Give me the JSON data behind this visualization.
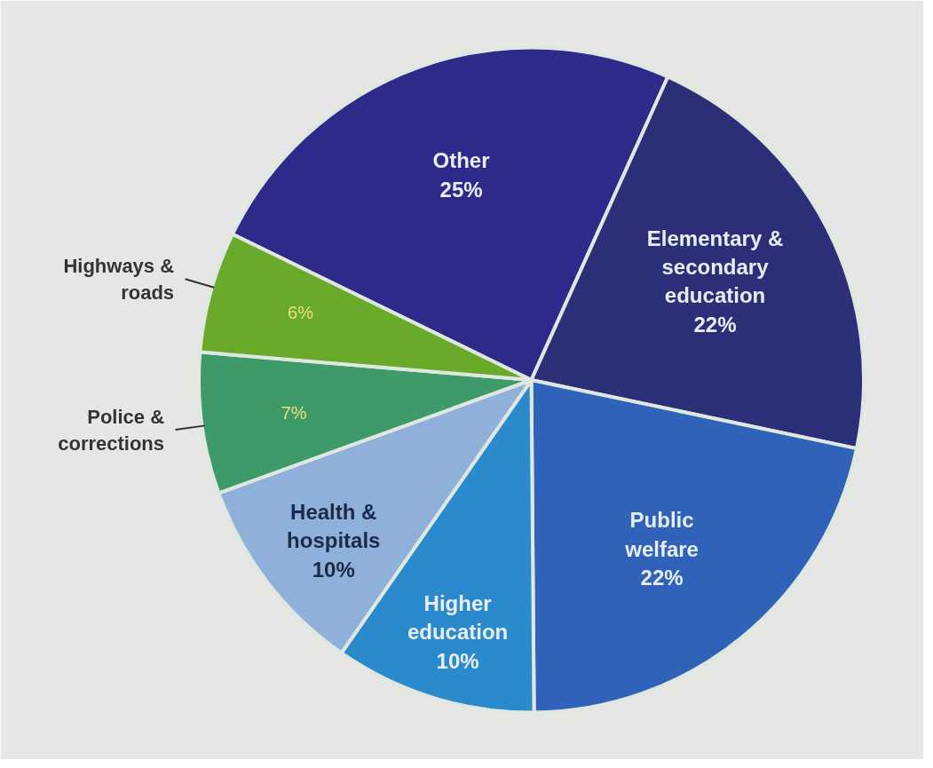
{
  "chart_data": {
    "type": "pie",
    "categories": [
      "Other",
      "Elementary & secondary education",
      "Public welfare",
      "Higher education",
      "Health & hospitals",
      "Police & corrections",
      "Highways & roads"
    ],
    "values": [
      25,
      22,
      22,
      10,
      10,
      7,
      6
    ],
    "value_labels": [
      "25%",
      "22%",
      "22%",
      "10%",
      "10%",
      "7%",
      "6%"
    ],
    "colors": [
      "#2e2a8a",
      "#2b2f78",
      "#2f62b8",
      "#2a8acb",
      "#8fb0d8",
      "#3f9a6a",
      "#6aaa2a"
    ]
  }
}
